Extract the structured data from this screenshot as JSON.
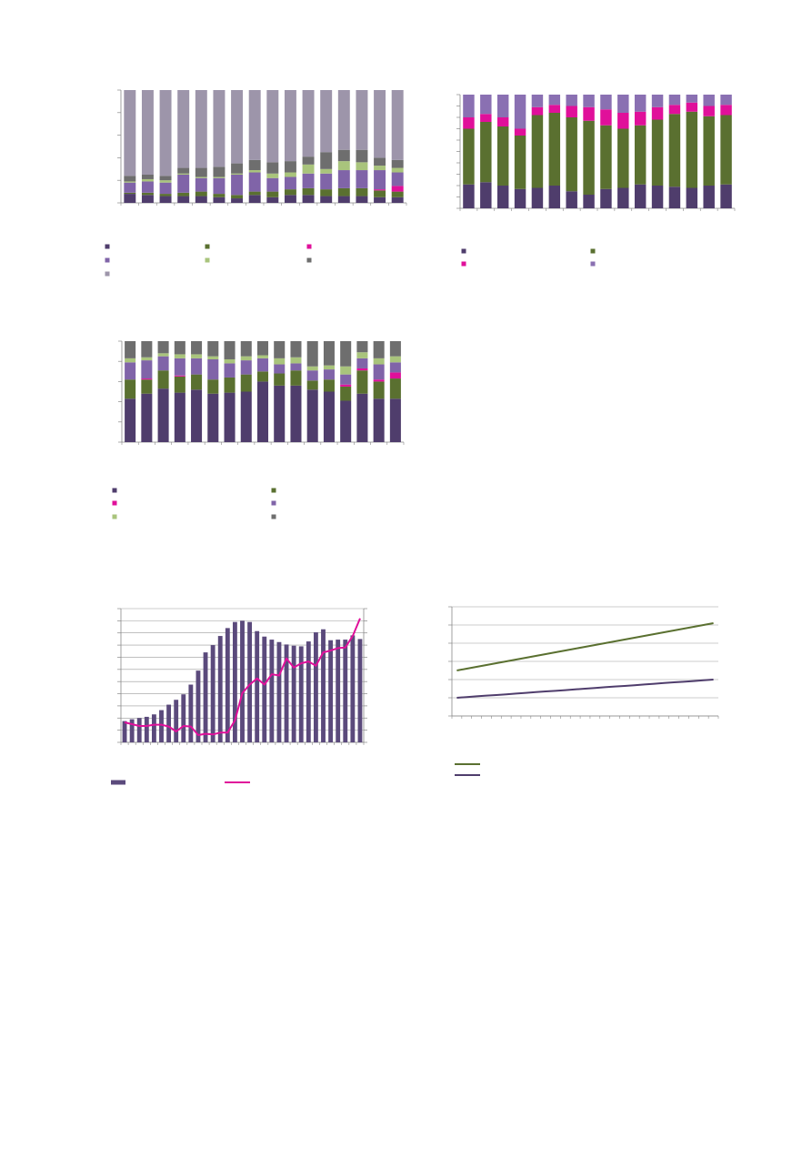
{
  "chart_data": [
    {
      "type": "stacked_bar",
      "ylim": [
        0,
        100
      ],
      "yticks": [
        0,
        20,
        40,
        60,
        80,
        100
      ],
      "grid": false,
      "series": [
        {
          "color": "#4f3d6c",
          "values": [
            8,
            7,
            6,
            6,
            6,
            5,
            4,
            7,
            5,
            7,
            7,
            6,
            6,
            6,
            5,
            5
          ]
        },
        {
          "color": "#5a7030",
          "values": [
            1,
            2,
            2,
            3,
            4,
            3,
            3,
            3,
            5,
            5,
            6,
            6,
            7,
            7,
            6,
            5
          ]
        },
        {
          "color": "#e0109a",
          "values": [
            0,
            0,
            0,
            0,
            0,
            0,
            0,
            0,
            0,
            0,
            0,
            0,
            0,
            0,
            1,
            5
          ]
        },
        {
          "color": "#8064a8",
          "values": [
            9,
            10,
            10,
            16,
            12,
            14,
            18,
            17,
            12,
            11,
            13,
            14,
            16,
            16,
            17,
            12
          ]
        },
        {
          "color": "#a9c47c",
          "values": [
            1,
            2,
            2,
            1,
            1,
            1,
            1,
            2,
            4,
            4,
            8,
            4,
            8,
            7,
            4,
            4
          ]
        },
        {
          "color": "#6e6e6e",
          "values": [
            5,
            4,
            4,
            5,
            8,
            9,
            9,
            9,
            10,
            10,
            7,
            15,
            10,
            11,
            7,
            7
          ]
        },
        {
          "color": "#9d95aa",
          "values": [
            76,
            75,
            76,
            69,
            69,
            68,
            65,
            62,
            64,
            63,
            59,
            55,
            53,
            53,
            60,
            62
          ]
        }
      ]
    },
    {
      "type": "stacked_bar",
      "ylim": [
        0,
        100
      ],
      "yticks": [
        0,
        10,
        20,
        30,
        40,
        50,
        60,
        70,
        80,
        90,
        100
      ],
      "grid": false,
      "series": [
        {
          "color": "#4f3d6c",
          "values": [
            21,
            23,
            20,
            17,
            18,
            20,
            15,
            12,
            17,
            18,
            21,
            20,
            19,
            18,
            20,
            21
          ]
        },
        {
          "color": "#5a7030",
          "values": [
            49,
            53,
            52,
            47,
            64,
            64,
            65,
            65,
            56,
            52,
            52,
            58,
            64,
            67,
            61,
            61
          ]
        },
        {
          "color": "#e0109a",
          "values": [
            10,
            7,
            8,
            6,
            7,
            7,
            10,
            12,
            14,
            14,
            12,
            11,
            8,
            8,
            9,
            9
          ]
        },
        {
          "color": "#8a70b2",
          "values": [
            20,
            17,
            20,
            30,
            11,
            9,
            10,
            11,
            13,
            16,
            15,
            11,
            9,
            7,
            10,
            9
          ]
        }
      ]
    },
    {
      "type": "stacked_bar",
      "ylim": [
        0,
        100
      ],
      "yticks": [
        0,
        20,
        40,
        60,
        80,
        100
      ],
      "grid": false,
      "series": [
        {
          "color": "#4f3d6c",
          "values": [
            43,
            48,
            53,
            49,
            52,
            48,
            49,
            50,
            60,
            56,
            56,
            52,
            50,
            41,
            48,
            43,
            43
          ]
        },
        {
          "color": "#5a7030",
          "values": [
            19,
            14,
            18,
            16,
            15,
            14,
            15,
            17,
            10,
            12,
            15,
            9,
            12,
            14,
            23,
            17,
            20
          ]
        },
        {
          "color": "#e0109a",
          "values": [
            0,
            1,
            0,
            1,
            0,
            0,
            0,
            0,
            0,
            0,
            0,
            0,
            0,
            2,
            2,
            2,
            6
          ]
        },
        {
          "color": "#8064a8",
          "values": [
            17,
            18,
            14,
            17,
            16,
            20,
            14,
            14,
            13,
            9,
            7,
            10,
            10,
            10,
            10,
            15,
            10
          ]
        },
        {
          "color": "#a9c47c",
          "values": [
            4,
            3,
            3,
            4,
            4,
            3,
            4,
            4,
            3,
            6,
            6,
            4,
            4,
            8,
            6,
            6,
            6
          ]
        },
        {
          "color": "#6e6e6e",
          "values": [
            17,
            16,
            12,
            13,
            13,
            15,
            18,
            15,
            14,
            17,
            16,
            25,
            24,
            25,
            11,
            17,
            15
          ]
        }
      ]
    },
    {
      "type": "bar_line",
      "ylim": [
        0,
        22
      ],
      "yticks": [
        0,
        2,
        4,
        6,
        8,
        10,
        12,
        14,
        16,
        18,
        20,
        22
      ],
      "y2lim": [
        0,
        22
      ],
      "y2ticks": [
        0,
        2,
        4,
        6,
        8,
        10,
        12,
        14,
        16,
        18,
        20,
        22
      ],
      "grid": true,
      "series": [
        {
          "color": "#5b4a7c",
          "values": [
            3.5,
            3.8,
            4.0,
            4.2,
            4.6,
            5.3,
            6.2,
            7.0,
            7.9,
            9.5,
            11.8,
            14.8,
            16.0,
            17.5,
            18.8,
            19.8,
            20.0,
            19.8,
            18.3,
            17.4,
            16.9,
            16.5,
            16.1,
            15.9,
            15.8,
            16.6,
            18.1,
            18.6,
            16.8,
            16.9,
            16.9,
            17.6,
            17.0
          ]
        },
        {
          "color": "#e0109a",
          "axis": "y2",
          "values": [
            3.3,
            3.0,
            2.7,
            2.7,
            2.9,
            2.9,
            2.6,
            1.8,
            2.7,
            2.6,
            1.2,
            1.4,
            1.3,
            1.6,
            1.6,
            3.6,
            8.1,
            9.5,
            10.5,
            9.5,
            11.2,
            11.0,
            13.8,
            12.3,
            13.0,
            13.3,
            12.6,
            14.8,
            15.1,
            15.5,
            15.6,
            17.5,
            20.4
          ]
        }
      ]
    },
    {
      "type": "line",
      "ylim": [
        0,
        6
      ],
      "yticks": [
        0,
        1,
        2,
        3,
        4,
        5,
        6
      ],
      "grid": true,
      "series": [
        {
          "color": "#5a7030",
          "values": [
            2.5,
            2.6,
            2.7,
            2.8,
            2.9,
            3.0,
            3.1,
            3.2,
            3.3,
            3.4,
            3.5,
            3.6,
            3.7,
            3.8,
            3.9,
            4.0,
            4.1,
            4.2,
            4.3,
            4.4,
            4.5,
            4.6,
            4.7,
            4.8,
            4.9,
            5.0,
            5.1
          ]
        },
        {
          "color": "#4f3d6c",
          "values": [
            1.0,
            1.04,
            1.08,
            1.12,
            1.15,
            1.19,
            1.23,
            1.27,
            1.31,
            1.35,
            1.38,
            1.42,
            1.46,
            1.5,
            1.54,
            1.58,
            1.62,
            1.65,
            1.69,
            1.73,
            1.77,
            1.81,
            1.85,
            1.88,
            1.92,
            1.96,
            2.0
          ]
        }
      ]
    }
  ]
}
